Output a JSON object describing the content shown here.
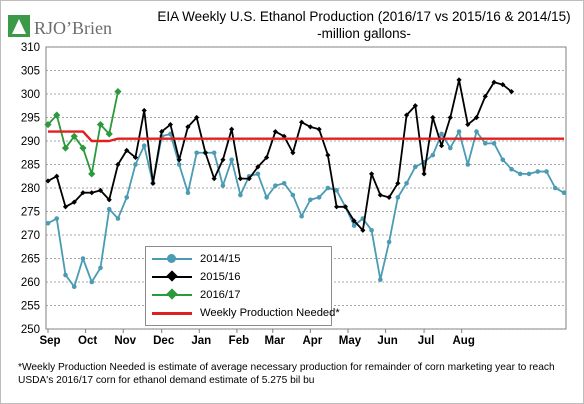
{
  "logo": {
    "name": "RJO’Brien"
  },
  "header": {
    "title": "EIA Weekly U.S. Ethanol Production (2016/17 vs 2015/16 & 2014/15)",
    "subtitle": "-million gallons-"
  },
  "footnote": "*Weekly Production Needed is estimate of average necessary production for remainder of corn marketing year to reach USDA's 2016/17 corn for ethanol demand estimate of 5.275 bil bu",
  "colors": {
    "series_2014_15": "#4a9bb3",
    "series_2015_16": "#000000",
    "series_2016_17": "#2a9a3a",
    "needed": "#e02020",
    "logo_green": "#3a9a48",
    "logo_gray": "#7a7a7a"
  },
  "chart_data": {
    "type": "line",
    "title": "EIA Weekly U.S. Ethanol Production (2016/17 vs 2015/16 & 2014/15)",
    "subtitle": "-million gallons-",
    "x_tick_labels": [
      "Sep",
      "Oct",
      "Nov",
      "Dec",
      "Jan",
      "Feb",
      "Mar",
      "Apr",
      "May",
      "Jun",
      "Jul",
      "Aug"
    ],
    "y_tick_labels": [
      "250",
      "255",
      "260",
      "265",
      "270",
      "275",
      "280",
      "285",
      "290",
      "295",
      "300",
      "305",
      "310"
    ],
    "ylim": [
      250,
      310
    ],
    "grid": true,
    "legend_position": "bottom-left",
    "series": [
      {
        "name": "2014/15",
        "marker": "circle",
        "color_key": "series_2014_15",
        "values": [
          272.5,
          273.5,
          261.5,
          259,
          265,
          260,
          263,
          275.5,
          273.5,
          278,
          285,
          289,
          281,
          291,
          291.5,
          285,
          279,
          287.5,
          287.5,
          287.5,
          280.5,
          286,
          278.5,
          282.5,
          283,
          278,
          280.5,
          281,
          278.5,
          274,
          277.5,
          278,
          280,
          279.5,
          276,
          272,
          273.5,
          271,
          260.5,
          268.5,
          278,
          281,
          284.5,
          285.5,
          287,
          291.5,
          288.5,
          292,
          285,
          292,
          289.5,
          289.5,
          286,
          284,
          283,
          283,
          283.5,
          283.5,
          280,
          279
        ]
      },
      {
        "name": "2015/16",
        "marker": "diamond",
        "color_key": "series_2015_16",
        "values": [
          281.5,
          282.5,
          276,
          277,
          279,
          279,
          279.5,
          277.5,
          285,
          288,
          286.5,
          296.5,
          281,
          292,
          293.5,
          286,
          293,
          295,
          287.5,
          282,
          286,
          292.5,
          282,
          282,
          284.5,
          286.5,
          292,
          291,
          287.5,
          294,
          293,
          292.5,
          287,
          276,
          276,
          273,
          271,
          283,
          278.5,
          278,
          281,
          295.5,
          297.5,
          283,
          295,
          289,
          295,
          303,
          293.5,
          295,
          299.5,
          302.5,
          302,
          300.5
        ]
      },
      {
        "name": "2016/17",
        "marker": "diamond",
        "color_key": "series_2016_17",
        "values": [
          293.5,
          295.5,
          288.5,
          291,
          288.5,
          283,
          293.5,
          291.5,
          300.5
        ]
      },
      {
        "name": "Weekly Production Needed*",
        "marker": "none",
        "color_key": "needed",
        "values": [
          292,
          292,
          292,
          292,
          292,
          290,
          290,
          290,
          290.5,
          290.5,
          290.5,
          290.5,
          290.5,
          290.5,
          290.5,
          290.5,
          290.5,
          290.5,
          290.5,
          290.5,
          290.5,
          290.5,
          290.5,
          290.5,
          290.5,
          290.5,
          290.5,
          290.5,
          290.5,
          290.5,
          290.5,
          290.5,
          290.5,
          290.5,
          290.5,
          290.5,
          290.5,
          290.5,
          290.5,
          290.5,
          290.5,
          290.5,
          290.5,
          290.5,
          290.5,
          290.5,
          290.5,
          290.5,
          290.5,
          290.5,
          290.5,
          290.5,
          290.5,
          290.5,
          290.5,
          290.5,
          290.5,
          290.5,
          290.5,
          290.5
        ]
      }
    ]
  }
}
